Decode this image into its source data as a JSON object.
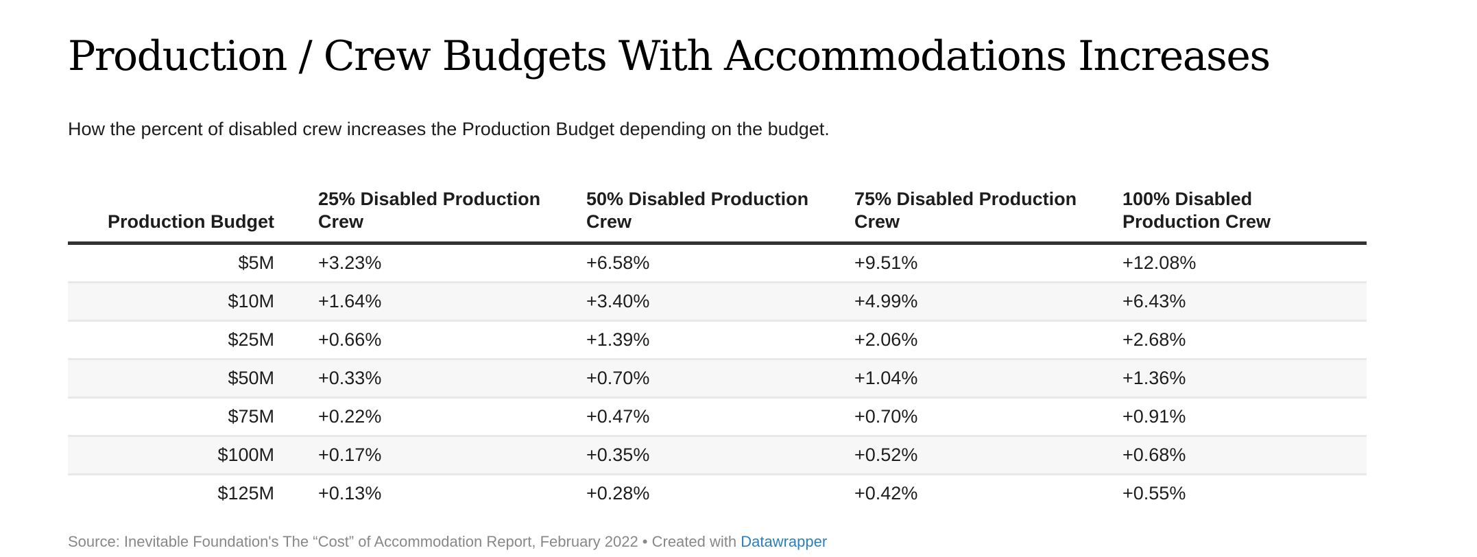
{
  "header": {
    "title": "Production / Crew Budgets With Accommodations Increases",
    "subtitle": "How the percent of disabled crew increases the Production Budget depending on the budget."
  },
  "table": {
    "columns": [
      "Production Budget",
      "25% Disabled Production Crew",
      "50% Disabled Production Crew",
      "75% Disabled Production Crew",
      "100% Disabled Production Crew"
    ],
    "rows": [
      [
        "$5M",
        "+3.23%",
        "+6.58%",
        "+9.51%",
        "+12.08%"
      ],
      [
        "$10M",
        "+1.64%",
        "+3.40%",
        "+4.99%",
        "+6.43%"
      ],
      [
        "$25M",
        "+0.66%",
        "+1.39%",
        "+2.06%",
        "+2.68%"
      ],
      [
        "$50M",
        "+0.33%",
        "+0.70%",
        "+1.04%",
        "+1.36%"
      ],
      [
        "$75M",
        "+0.22%",
        "+0.47%",
        "+0.70%",
        "+0.91%"
      ],
      [
        "$100M",
        "+0.17%",
        "+0.35%",
        "+0.52%",
        "+0.68%"
      ],
      [
        "$125M",
        "+0.13%",
        "+0.28%",
        "+0.42%",
        "+0.55%"
      ]
    ]
  },
  "footer": {
    "source_text": "Source: Inevitable Foundation's The “Cost” of Accommodation Report, February 2022 • Created with ",
    "credit_link": "Datawrapper",
    "link_color": "#2a7fc1"
  },
  "colors": {
    "header_rule": "#333333",
    "row_stripe": "#f7f7f7",
    "row_divider": "#e9e9e9",
    "footer_text": "#888888"
  },
  "chart_data": {
    "type": "table",
    "title": "Production / Crew Budgets With Accommodations Increases",
    "subtitle": "How the percent of disabled crew increases the Production Budget depending on the budget.",
    "columns": [
      "Production Budget",
      "25% Disabled Production Crew",
      "50% Disabled Production Crew",
      "75% Disabled Production Crew",
      "100% Disabled Production Crew"
    ],
    "categories": [
      "$5M",
      "$10M",
      "$25M",
      "$50M",
      "$75M",
      "$100M",
      "$125M"
    ],
    "series": [
      {
        "name": "25% Disabled Production Crew",
        "values": [
          3.23,
          1.64,
          0.66,
          0.33,
          0.22,
          0.17,
          0.13
        ]
      },
      {
        "name": "50% Disabled Production Crew",
        "values": [
          6.58,
          3.4,
          1.39,
          0.7,
          0.47,
          0.35,
          0.28
        ]
      },
      {
        "name": "75% Disabled Production Crew",
        "values": [
          9.51,
          4.99,
          2.06,
          1.04,
          0.7,
          0.52,
          0.42
        ]
      },
      {
        "name": "100% Disabled Production Crew",
        "values": [
          12.08,
          6.43,
          2.68,
          1.36,
          0.91,
          0.68,
          0.55
        ]
      }
    ],
    "units": "% increase",
    "source": "Inevitable Foundation's The “Cost” of Accommodation Report, February 2022"
  }
}
